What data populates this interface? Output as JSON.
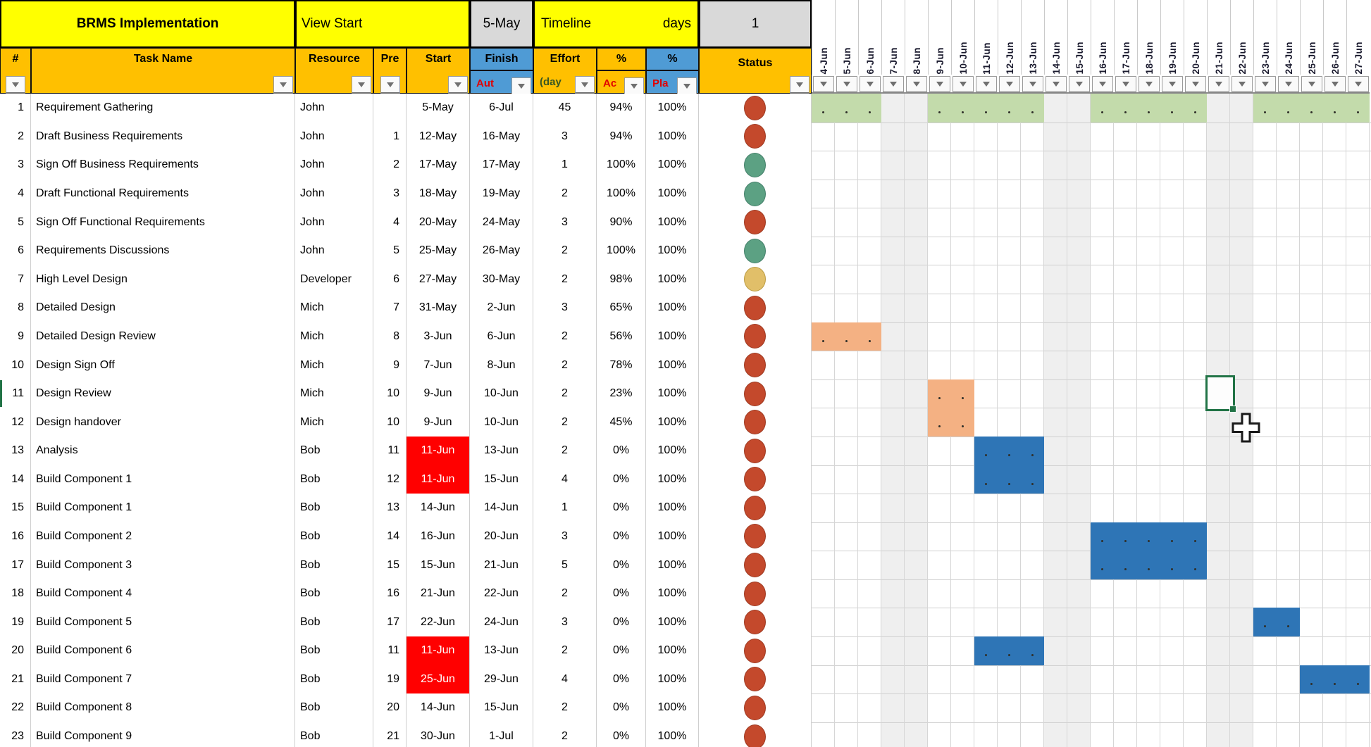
{
  "title_bar": {
    "project": "BRMS Implementation",
    "view_label": "View Start",
    "view_date": "5-May",
    "timeline_label": "Timeline",
    "timeline_unit": "days",
    "timeline_value": "1"
  },
  "columns": {
    "num": "#",
    "task": "Task Name",
    "resource": "Resource",
    "pre": "Pre",
    "start": "Start",
    "finish": "Finish",
    "finish_sub": "Aut",
    "effort": "Effort",
    "effort_sub": "(day",
    "actual": "%",
    "actual_sub": "Ac",
    "plan": "%",
    "plan_sub": "Pla",
    "status": "Status"
  },
  "dates": [
    "4-Jun",
    "5-Jun",
    "6-Jun",
    "7-Jun",
    "8-Jun",
    "9-Jun",
    "10-Jun",
    "11-Jun",
    "12-Jun",
    "13-Jun",
    "14-Jun",
    "15-Jun",
    "16-Jun",
    "17-Jun",
    "18-Jun",
    "19-Jun",
    "20-Jun",
    "21-Jun",
    "22-Jun",
    "23-Jun",
    "24-Jun",
    "25-Jun",
    "26-Jun",
    "27-Jun"
  ],
  "weekend_indices": [
    3,
    4,
    10,
    11,
    17,
    18
  ],
  "rows": [
    {
      "num": "1",
      "task": "Requirement Gathering",
      "resource": "John",
      "pre": "",
      "start": "5-May",
      "start_alert": false,
      "finish": "6-Jul",
      "effort": "45",
      "actual": "94%",
      "plan": "100%",
      "status": "red",
      "bar": {
        "color": "green",
        "segments": [
          [
            0,
            2
          ],
          [
            5,
            9
          ],
          [
            12,
            16
          ],
          [
            19,
            23
          ]
        ]
      }
    },
    {
      "num": "2",
      "task": "Draft Business Requirements",
      "resource": "John",
      "pre": "1",
      "start": "12-May",
      "start_alert": false,
      "finish": "16-May",
      "effort": "3",
      "actual": "94%",
      "plan": "100%",
      "status": "red",
      "bar": null
    },
    {
      "num": "3",
      "task": "Sign Off Business Requirements",
      "resource": "John",
      "pre": "2",
      "start": "17-May",
      "start_alert": false,
      "finish": "17-May",
      "effort": "1",
      "actual": "100%",
      "plan": "100%",
      "status": "green",
      "bar": null
    },
    {
      "num": "4",
      "task": "Draft Functional Requirements",
      "resource": "John",
      "pre": "3",
      "start": "18-May",
      "start_alert": false,
      "finish": "19-May",
      "effort": "2",
      "actual": "100%",
      "plan": "100%",
      "status": "green",
      "bar": null
    },
    {
      "num": "5",
      "task": "Sign Off Functional Requirements",
      "resource": "John",
      "pre": "4",
      "start": "20-May",
      "start_alert": false,
      "finish": "24-May",
      "effort": "3",
      "actual": "90%",
      "plan": "100%",
      "status": "red",
      "bar": null
    },
    {
      "num": "6",
      "task": "Requirements Discussions",
      "resource": "John",
      "pre": "5",
      "start": "25-May",
      "start_alert": false,
      "finish": "26-May",
      "effort": "2",
      "actual": "100%",
      "plan": "100%",
      "status": "green",
      "bar": null
    },
    {
      "num": "7",
      "task": "High Level Design",
      "resource": "Developer",
      "pre": "6",
      "start": "27-May",
      "start_alert": false,
      "finish": "30-May",
      "effort": "2",
      "actual": "98%",
      "plan": "100%",
      "status": "yellow",
      "bar": null
    },
    {
      "num": "8",
      "task": "Detailed Design",
      "resource": "Mich",
      "pre": "7",
      "start": "31-May",
      "start_alert": false,
      "finish": "2-Jun",
      "effort": "3",
      "actual": "65%",
      "plan": "100%",
      "status": "red",
      "bar": null
    },
    {
      "num": "9",
      "task": "Detailed Design Review",
      "resource": "Mich",
      "pre": "8",
      "start": "3-Jun",
      "start_alert": false,
      "finish": "6-Jun",
      "effort": "2",
      "actual": "56%",
      "plan": "100%",
      "status": "red",
      "bar": {
        "color": "salmon",
        "segments": [
          [
            0,
            2
          ]
        ]
      }
    },
    {
      "num": "10",
      "task": "Design Sign Off",
      "resource": "Mich",
      "pre": "9",
      "start": "7-Jun",
      "start_alert": false,
      "finish": "8-Jun",
      "effort": "2",
      "actual": "78%",
      "plan": "100%",
      "status": "red",
      "bar": null
    },
    {
      "num": "11",
      "task": "Design Review",
      "resource": "Mich",
      "pre": "10",
      "start": "9-Jun",
      "start_alert": false,
      "finish": "10-Jun",
      "effort": "2",
      "actual": "23%",
      "plan": "100%",
      "status": "red",
      "bar": {
        "color": "salmon",
        "segments": [
          [
            5,
            6
          ]
        ]
      }
    },
    {
      "num": "12",
      "task": "Design handover",
      "resource": "Mich",
      "pre": "10",
      "start": "9-Jun",
      "start_alert": false,
      "finish": "10-Jun",
      "effort": "2",
      "actual": "45%",
      "plan": "100%",
      "status": "red",
      "bar": {
        "color": "salmon",
        "segments": [
          [
            5,
            6
          ]
        ]
      }
    },
    {
      "num": "13",
      "task": "Analysis",
      "resource": "Bob",
      "pre": "11",
      "start": "11-Jun",
      "start_alert": true,
      "finish": "13-Jun",
      "effort": "2",
      "actual": "0%",
      "plan": "100%",
      "status": "red",
      "bar": {
        "color": "blue",
        "segments": [
          [
            7,
            9
          ]
        ]
      }
    },
    {
      "num": "14",
      "task": "Build Component 1",
      "resource": "Bob",
      "pre": "12",
      "start": "11-Jun",
      "start_alert": true,
      "finish": "15-Jun",
      "effort": "4",
      "actual": "0%",
      "plan": "100%",
      "status": "red",
      "bar": {
        "color": "blue",
        "segments": [
          [
            7,
            9
          ]
        ]
      }
    },
    {
      "num": "15",
      "task": "Build Component 1",
      "resource": "Bob",
      "pre": "13",
      "start": "14-Jun",
      "start_alert": false,
      "finish": "14-Jun",
      "effort": "1",
      "actual": "0%",
      "plan": "100%",
      "status": "red",
      "bar": null
    },
    {
      "num": "16",
      "task": "Build Component 2",
      "resource": "Bob",
      "pre": "14",
      "start": "16-Jun",
      "start_alert": false,
      "finish": "20-Jun",
      "effort": "3",
      "actual": "0%",
      "plan": "100%",
      "status": "red",
      "bar": {
        "color": "blue",
        "segments": [
          [
            12,
            16
          ]
        ]
      }
    },
    {
      "num": "17",
      "task": "Build Component 3",
      "resource": "Bob",
      "pre": "15",
      "start": "15-Jun",
      "start_alert": false,
      "finish": "21-Jun",
      "effort": "5",
      "actual": "0%",
      "plan": "100%",
      "status": "red",
      "bar": {
        "color": "blue",
        "segments": [
          [
            12,
            16
          ]
        ]
      }
    },
    {
      "num": "18",
      "task": "Build Component 4",
      "resource": "Bob",
      "pre": "16",
      "start": "21-Jun",
      "start_alert": false,
      "finish": "22-Jun",
      "effort": "2",
      "actual": "0%",
      "plan": "100%",
      "status": "red",
      "bar": null
    },
    {
      "num": "19",
      "task": "Build Component 5",
      "resource": "Bob",
      "pre": "17",
      "start": "22-Jun",
      "start_alert": false,
      "finish": "24-Jun",
      "effort": "3",
      "actual": "0%",
      "plan": "100%",
      "status": "red",
      "bar": {
        "color": "blue",
        "segments": [
          [
            19,
            20
          ]
        ]
      }
    },
    {
      "num": "20",
      "task": "Build Component 6",
      "resource": "Bob",
      "pre": "11",
      "start": "11-Jun",
      "start_alert": true,
      "finish": "13-Jun",
      "effort": "2",
      "actual": "0%",
      "plan": "100%",
      "status": "red",
      "bar": {
        "color": "blue",
        "segments": [
          [
            7,
            9
          ]
        ]
      }
    },
    {
      "num": "21",
      "task": "Build Component 7",
      "resource": "Bob",
      "pre": "19",
      "start": "25-Jun",
      "start_alert": true,
      "finish": "29-Jun",
      "effort": "4",
      "actual": "0%",
      "plan": "100%",
      "status": "red",
      "bar": {
        "color": "blue",
        "segments": [
          [
            21,
            23
          ]
        ]
      }
    },
    {
      "num": "22",
      "task": "Build Component 8",
      "resource": "Bob",
      "pre": "20",
      "start": "14-Jun",
      "start_alert": false,
      "finish": "15-Jun",
      "effort": "2",
      "actual": "0%",
      "plan": "100%",
      "status": "red",
      "bar": null
    },
    {
      "num": "23",
      "task": "Build Component 9",
      "resource": "Bob",
      "pre": "21",
      "start": "30-Jun",
      "start_alert": false,
      "finish": "1-Jul",
      "effort": "2",
      "actual": "0%",
      "plan": "100%",
      "status": "red",
      "bar": null
    }
  ],
  "selection": {
    "row": 11,
    "date": "21-Jun"
  },
  "cursor": {
    "row": 12,
    "date": "22-Jun"
  },
  "colors": {
    "title_yellow": "#FFFF00",
    "header_orange": "#FFC000",
    "header_blue": "#4F9BD5",
    "header_gray": "#D9D9D9",
    "alert_red": "#FF0000",
    "weekend_gray": "#EFEFEF",
    "bar_green": "#C3DBAB",
    "bar_salmon": "#F4B183",
    "bar_blue": "#2E75B6",
    "status_red": "#C4492C",
    "status_green": "#5CA183",
    "status_yellow": "#E1BF69",
    "selection_green": "#217346"
  }
}
